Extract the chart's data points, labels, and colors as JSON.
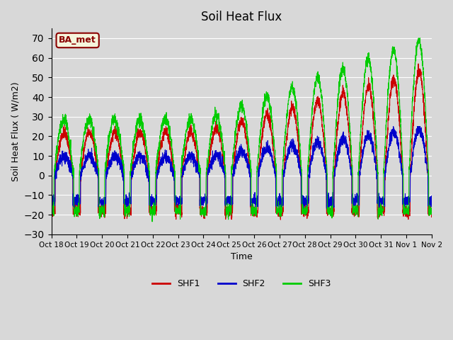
{
  "title": "Soil Heat Flux",
  "xlabel": "Time",
  "ylabel": "Soil Heat Flux (W/m2)",
  "ylim": [
    -30,
    75
  ],
  "yticks": [
    -30,
    -20,
    -10,
    0,
    10,
    20,
    30,
    40,
    50,
    60,
    70
  ],
  "plot_bg_color": "#d8d8d8",
  "legend_entries": [
    "SHF1",
    "SHF2",
    "SHF3"
  ],
  "legend_colors": [
    "#cc0000",
    "#0000cc",
    "#00cc00"
  ],
  "annotation_text": "BA_met",
  "annotation_color": "#8b0000",
  "annotation_bg": "#f5f5dc",
  "x_tick_labels": [
    "Oct 18",
    "Oct 19",
    "Oct 20",
    "Oct 21",
    "Oct 22",
    "Oct 23",
    "Oct 24",
    "Oct 25",
    "Oct 26",
    "Oct 27",
    "Oct 28",
    "Oct 29",
    "Oct 30",
    "Oct 31",
    "Nov 1",
    "Nov 2"
  ],
  "num_points": 3360,
  "shf1_color": "#cc0000",
  "shf2_color": "#0000cc",
  "shf3_color": "#00cc00"
}
